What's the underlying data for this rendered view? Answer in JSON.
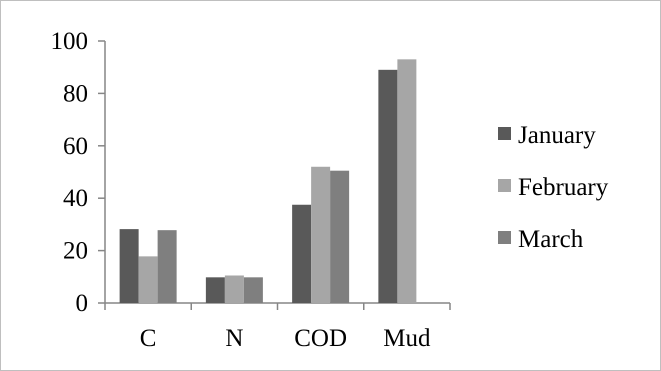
{
  "chart_data": {
    "type": "bar",
    "categories": [
      "C",
      "N",
      "COD",
      "Mud"
    ],
    "series": [
      {
        "name": "January",
        "values": [
          28.2,
          9.8,
          37.5,
          89.0
        ],
        "color": "#595959"
      },
      {
        "name": "February",
        "values": [
          17.8,
          10.5,
          52.0,
          93.0
        ],
        "color": "#a6a6a6"
      },
      {
        "name": "March",
        "values": [
          27.8,
          9.8,
          50.5,
          null
        ],
        "color": "#7f7f7f"
      }
    ],
    "yticks": [
      0,
      20,
      40,
      60,
      80,
      100
    ],
    "ylim": [
      0,
      100
    ],
    "grid": false,
    "legend_position": "right"
  }
}
